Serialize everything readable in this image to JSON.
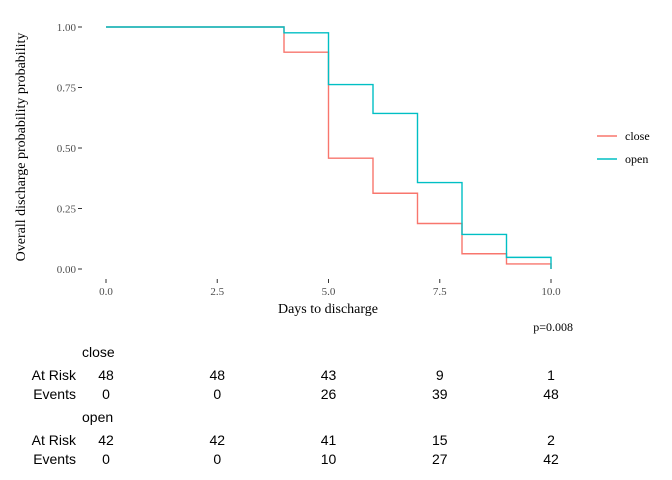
{
  "chart_data": {
    "type": "line",
    "step": true,
    "xlabel": "Days to discharge",
    "ylabel": "Overall discharge probability probability",
    "xlim": [
      0,
      10
    ],
    "ylim": [
      0,
      1
    ],
    "x_ticks": [
      "0.0",
      "2.5",
      "5.0",
      "7.5",
      "10.0"
    ],
    "y_ticks": [
      "0.00",
      "0.25",
      "0.50",
      "0.75",
      "1.00"
    ],
    "grid": false,
    "legend_position": "right",
    "pvalue": "p=0.008",
    "series": [
      {
        "name": "close",
        "color": "#F8766D",
        "x": [
          0,
          4,
          5,
          6,
          7,
          8,
          9,
          10
        ],
        "y": [
          1.0,
          0.896,
          0.458,
          0.313,
          0.188,
          0.063,
          0.021,
          0.0
        ]
      },
      {
        "name": "open",
        "color": "#00BFC4",
        "x": [
          0,
          4,
          5,
          6,
          7,
          8,
          9,
          10
        ],
        "y": [
          1.0,
          0.976,
          0.762,
          0.643,
          0.357,
          0.143,
          0.048,
          0.0
        ]
      }
    ]
  },
  "risk_table": {
    "times": [
      "0.0",
      "2.5",
      "5.0",
      "7.5",
      "10.0"
    ],
    "groups": [
      {
        "name": "close",
        "rows": [
          {
            "label": "At Risk",
            "values": [
              "48",
              "48",
              "43",
              "9",
              "1"
            ]
          },
          {
            "label": "Events",
            "values": [
              "0",
              "0",
              "26",
              "39",
              "48"
            ]
          }
        ]
      },
      {
        "name": "open",
        "rows": [
          {
            "label": "At Risk",
            "values": [
              "42",
              "42",
              "41",
              "15",
              "2"
            ]
          },
          {
            "label": "Events",
            "values": [
              "0",
              "0",
              "10",
              "27",
              "42"
            ]
          }
        ]
      }
    ]
  }
}
